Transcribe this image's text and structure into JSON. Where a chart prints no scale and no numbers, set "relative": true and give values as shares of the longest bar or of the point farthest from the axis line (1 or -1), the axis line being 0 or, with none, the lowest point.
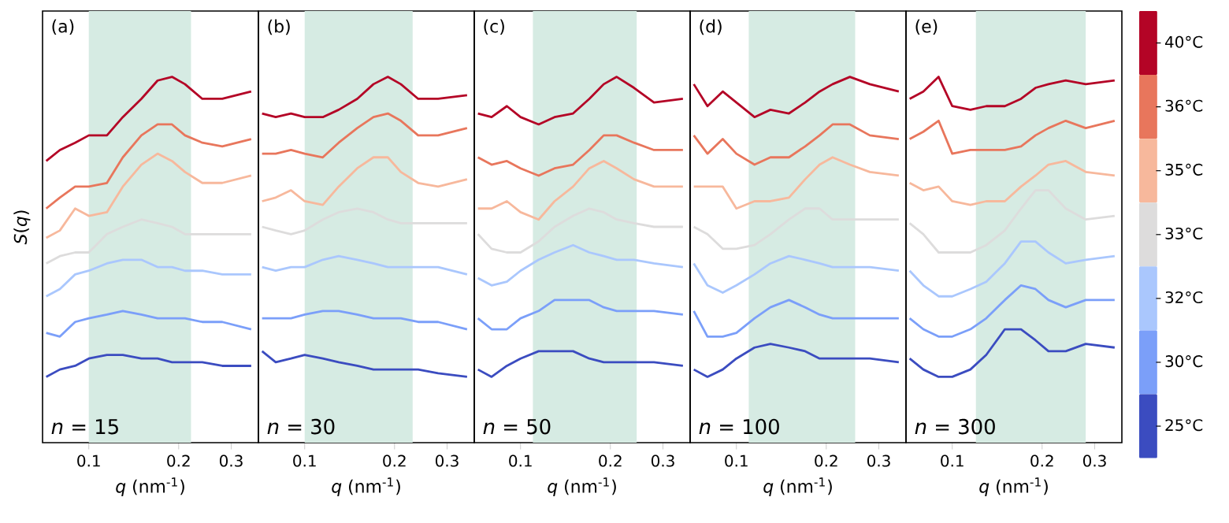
{
  "chart_data": [
    {
      "type": "line",
      "relative": true,
      "log": "x",
      "xlim": [
        0.07,
        0.37
      ],
      "xticks": [
        0.1,
        0.2,
        0.3
      ],
      "xlabel": "*q* (nm$^{-1}$)",
      "ylabel": "*S*(*q*)",
      "annotations": [
        "(a)",
        "*n* = 15"
      ],
      "bands": [
        {
          "axis": "x",
          "from": 0.1,
          "to": 0.22,
          "color": "#d6ebe3"
        }
      ],
      "x": [
        0.072,
        0.08,
        0.09,
        0.1,
        0.115,
        0.13,
        0.15,
        0.17,
        0.19,
        0.21,
        0.24,
        0.28,
        0.35
      ],
      "series": [
        {
          "color": "#b40426",
          "values": [
            0.77,
            0.8,
            0.82,
            0.84,
            0.84,
            0.89,
            0.94,
            0.99,
            1.0,
            0.98,
            0.94,
            0.94,
            0.96
          ]
        },
        {
          "color": "#e8765c",
          "values": [
            0.64,
            0.67,
            0.7,
            0.7,
            0.71,
            0.78,
            0.84,
            0.87,
            0.87,
            0.84,
            0.82,
            0.81,
            0.83
          ]
        },
        {
          "color": "#f7b89c",
          "values": [
            0.56,
            0.58,
            0.64,
            0.62,
            0.63,
            0.7,
            0.76,
            0.79,
            0.77,
            0.74,
            0.71,
            0.71,
            0.73
          ]
        },
        {
          "color": "#dddcdc",
          "values": [
            0.49,
            0.51,
            0.52,
            0.52,
            0.57,
            0.59,
            0.61,
            0.6,
            0.59,
            0.57,
            0.57,
            0.57,
            0.57
          ]
        },
        {
          "color": "#aac7fd",
          "values": [
            0.4,
            0.42,
            0.46,
            0.47,
            0.49,
            0.5,
            0.5,
            0.48,
            0.48,
            0.47,
            0.47,
            0.46,
            0.46
          ]
        },
        {
          "color": "#7b9ff9",
          "values": [
            0.3,
            0.29,
            0.33,
            0.34,
            0.35,
            0.36,
            0.35,
            0.34,
            0.34,
            0.34,
            0.33,
            0.33,
            0.31
          ]
        },
        {
          "color": "#3b4cc0",
          "values": [
            0.18,
            0.2,
            0.21,
            0.23,
            0.24,
            0.24,
            0.23,
            0.23,
            0.22,
            0.22,
            0.22,
            0.21,
            0.21
          ]
        }
      ]
    },
    {
      "type": "line",
      "relative": true,
      "log": "x",
      "xlim": [
        0.07,
        0.37
      ],
      "xticks": [
        0.1,
        0.2,
        0.3
      ],
      "xlabel": "*q* (nm$^{-1}$)",
      "annotations": [
        "(b)",
        "*n* = 30"
      ],
      "bands": [
        {
          "axis": "x",
          "from": 0.1,
          "to": 0.23,
          "color": "#d6ebe3"
        }
      ],
      "x": [
        0.072,
        0.08,
        0.09,
        0.1,
        0.115,
        0.13,
        0.15,
        0.17,
        0.19,
        0.21,
        0.24,
        0.28,
        0.35
      ],
      "series": [
        {
          "color": "#b40426",
          "values": [
            0.9,
            0.89,
            0.9,
            0.89,
            0.89,
            0.91,
            0.94,
            0.98,
            1.0,
            0.98,
            0.94,
            0.94,
            0.95
          ]
        },
        {
          "color": "#e8765c",
          "values": [
            0.79,
            0.79,
            0.8,
            0.79,
            0.78,
            0.82,
            0.86,
            0.89,
            0.9,
            0.88,
            0.84,
            0.84,
            0.86
          ]
        },
        {
          "color": "#f7b89c",
          "values": [
            0.66,
            0.67,
            0.69,
            0.66,
            0.65,
            0.7,
            0.75,
            0.78,
            0.78,
            0.74,
            0.71,
            0.7,
            0.72
          ]
        },
        {
          "color": "#dddcdc",
          "values": [
            0.59,
            0.58,
            0.57,
            0.58,
            0.61,
            0.63,
            0.64,
            0.63,
            0.61,
            0.6,
            0.6,
            0.6,
            0.6
          ]
        },
        {
          "color": "#aac7fd",
          "values": [
            0.48,
            0.47,
            0.48,
            0.48,
            0.5,
            0.51,
            0.5,
            0.49,
            0.48,
            0.48,
            0.48,
            0.48,
            0.46
          ]
        },
        {
          "color": "#7b9ff9",
          "values": [
            0.34,
            0.34,
            0.34,
            0.35,
            0.36,
            0.36,
            0.35,
            0.34,
            0.34,
            0.34,
            0.33,
            0.33,
            0.31
          ]
        },
        {
          "color": "#3b4cc0",
          "values": [
            0.25,
            0.22,
            0.23,
            0.24,
            0.23,
            0.22,
            0.21,
            0.2,
            0.2,
            0.2,
            0.2,
            0.19,
            0.18
          ]
        }
      ]
    },
    {
      "type": "line",
      "relative": true,
      "log": "x",
      "xlim": [
        0.07,
        0.37
      ],
      "xticks": [
        0.1,
        0.2,
        0.3
      ],
      "xlabel": "*q* (nm$^{-1}$)",
      "annotations": [
        "(c)",
        "*n* = 50"
      ],
      "bands": [
        {
          "axis": "x",
          "from": 0.11,
          "to": 0.245,
          "color": "#d6ebe3"
        }
      ],
      "x": [
        0.072,
        0.08,
        0.09,
        0.1,
        0.115,
        0.13,
        0.15,
        0.17,
        0.19,
        0.21,
        0.24,
        0.28,
        0.35
      ],
      "series": [
        {
          "color": "#b40426",
          "values": [
            0.9,
            0.89,
            0.92,
            0.89,
            0.87,
            0.89,
            0.9,
            0.94,
            0.98,
            1.0,
            0.97,
            0.93,
            0.94
          ]
        },
        {
          "color": "#e8765c",
          "values": [
            0.78,
            0.76,
            0.77,
            0.75,
            0.73,
            0.75,
            0.76,
            0.8,
            0.84,
            0.84,
            0.82,
            0.8,
            0.8
          ]
        },
        {
          "color": "#f7b89c",
          "values": [
            0.64,
            0.64,
            0.66,
            0.63,
            0.61,
            0.66,
            0.7,
            0.75,
            0.77,
            0.75,
            0.72,
            0.7,
            0.7
          ]
        },
        {
          "color": "#dddcdc",
          "values": [
            0.57,
            0.53,
            0.52,
            0.52,
            0.55,
            0.59,
            0.62,
            0.64,
            0.63,
            0.61,
            0.6,
            0.59,
            0.59
          ]
        },
        {
          "color": "#aac7fd",
          "values": [
            0.45,
            0.43,
            0.44,
            0.47,
            0.5,
            0.52,
            0.54,
            0.52,
            0.51,
            0.5,
            0.5,
            0.49,
            0.48
          ]
        },
        {
          "color": "#7b9ff9",
          "values": [
            0.34,
            0.31,
            0.31,
            0.34,
            0.36,
            0.39,
            0.39,
            0.39,
            0.37,
            0.36,
            0.36,
            0.36,
            0.35
          ]
        },
        {
          "color": "#3b4cc0",
          "values": [
            0.2,
            0.18,
            0.21,
            0.23,
            0.25,
            0.25,
            0.25,
            0.23,
            0.22,
            0.22,
            0.22,
            0.22,
            0.21
          ]
        }
      ]
    },
    {
      "type": "line",
      "relative": true,
      "log": "x",
      "xlim": [
        0.07,
        0.37
      ],
      "xticks": [
        0.1,
        0.2,
        0.3
      ],
      "xlabel": "*q* (nm$^{-1}$)",
      "annotations": [
        "(d)",
        "*n* = 100"
      ],
      "bands": [
        {
          "axis": "x",
          "from": 0.11,
          "to": 0.25,
          "color": "#d6ebe3"
        }
      ],
      "x": [
        0.072,
        0.08,
        0.09,
        0.1,
        0.115,
        0.13,
        0.15,
        0.17,
        0.19,
        0.21,
        0.24,
        0.28,
        0.35
      ],
      "series": [
        {
          "color": "#b40426",
          "values": [
            0.98,
            0.92,
            0.96,
            0.93,
            0.89,
            0.91,
            0.9,
            0.93,
            0.96,
            0.98,
            1.0,
            0.98,
            0.96
          ]
        },
        {
          "color": "#e8765c",
          "values": [
            0.84,
            0.79,
            0.83,
            0.79,
            0.76,
            0.78,
            0.78,
            0.81,
            0.84,
            0.87,
            0.87,
            0.84,
            0.83
          ]
        },
        {
          "color": "#f7b89c",
          "values": [
            0.7,
            0.7,
            0.7,
            0.64,
            0.66,
            0.66,
            0.67,
            0.72,
            0.76,
            0.78,
            0.76,
            0.74,
            0.73
          ]
        },
        {
          "color": "#dddcdc",
          "values": [
            0.59,
            0.57,
            0.53,
            0.53,
            0.54,
            0.57,
            0.61,
            0.64,
            0.64,
            0.61,
            0.61,
            0.61,
            0.61
          ]
        },
        {
          "color": "#aac7fd",
          "values": [
            0.49,
            0.43,
            0.41,
            0.43,
            0.46,
            0.49,
            0.51,
            0.5,
            0.49,
            0.48,
            0.48,
            0.48,
            0.47
          ]
        },
        {
          "color": "#7b9ff9",
          "values": [
            0.36,
            0.29,
            0.29,
            0.3,
            0.34,
            0.37,
            0.39,
            0.37,
            0.35,
            0.34,
            0.34,
            0.34,
            0.34
          ]
        },
        {
          "color": "#3b4cc0",
          "values": [
            0.2,
            0.18,
            0.2,
            0.23,
            0.26,
            0.27,
            0.26,
            0.25,
            0.23,
            0.23,
            0.23,
            0.23,
            0.22
          ]
        }
      ]
    },
    {
      "type": "line",
      "relative": true,
      "log": "x",
      "xlim": [
        0.07,
        0.37
      ],
      "xticks": [
        0.1,
        0.2,
        0.3
      ],
      "xlabel": "*q* (nm$^{-1}$)",
      "annotations": [
        "(e)",
        "*n* = 300"
      ],
      "legend": "right",
      "bands": [
        {
          "axis": "x",
          "from": 0.12,
          "to": 0.28,
          "color": "#d6ebe3"
        }
      ],
      "x": [
        0.072,
        0.08,
        0.09,
        0.1,
        0.115,
        0.13,
        0.15,
        0.17,
        0.19,
        0.21,
        0.24,
        0.28,
        0.35
      ],
      "series": [
        {
          "name": "40°C",
          "color": "#b40426",
          "values": [
            0.94,
            0.96,
            1.0,
            0.92,
            0.91,
            0.92,
            0.92,
            0.94,
            0.97,
            0.98,
            0.99,
            0.98,
            0.99
          ]
        },
        {
          "name": "36°C",
          "color": "#e8765c",
          "values": [
            0.83,
            0.85,
            0.88,
            0.79,
            0.8,
            0.8,
            0.8,
            0.81,
            0.84,
            0.86,
            0.88,
            0.86,
            0.88
          ]
        },
        {
          "name": "35°C",
          "color": "#f7b89c",
          "values": [
            0.71,
            0.69,
            0.7,
            0.66,
            0.65,
            0.66,
            0.66,
            0.7,
            0.73,
            0.76,
            0.77,
            0.74,
            0.73
          ]
        },
        {
          "name": "33°C",
          "color": "#dddcdc",
          "values": [
            0.6,
            0.57,
            0.52,
            0.52,
            0.52,
            0.54,
            0.58,
            0.64,
            0.69,
            0.69,
            0.64,
            0.61,
            0.62
          ]
        },
        {
          "name": "32°C",
          "color": "#aac7fd",
          "values": [
            0.47,
            0.43,
            0.4,
            0.4,
            0.42,
            0.44,
            0.49,
            0.55,
            0.55,
            0.52,
            0.49,
            0.5,
            0.51
          ]
        },
        {
          "name": "30°C",
          "color": "#7b9ff9",
          "values": [
            0.34,
            0.31,
            0.29,
            0.29,
            0.31,
            0.34,
            0.39,
            0.43,
            0.42,
            0.39,
            0.37,
            0.39,
            0.39
          ]
        },
        {
          "name": "25°C",
          "color": "#3b4cc0",
          "values": [
            0.23,
            0.2,
            0.18,
            0.18,
            0.2,
            0.24,
            0.31,
            0.31,
            0.28,
            0.25,
            0.25,
            0.27,
            0.26
          ]
        }
      ]
    }
  ]
}
